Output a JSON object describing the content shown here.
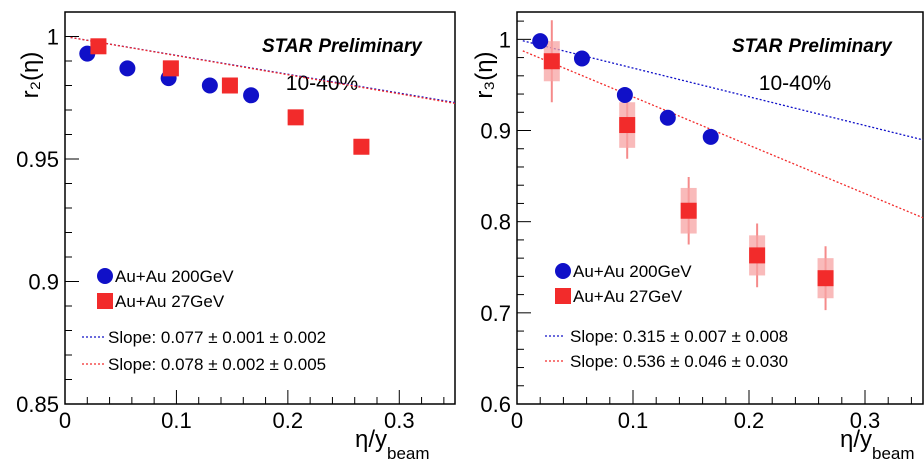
{
  "chart_data": [
    {
      "type": "scatter",
      "panel": "left",
      "header": "STAR",
      "header_suffix": "Preliminary",
      "centrality": "10-40%",
      "ylabel": "r₂(η)",
      "xlabel": "η/y",
      "xlabel_sub": "beam",
      "xlim": [
        0,
        0.35
      ],
      "ylim": [
        0.85,
        1.01
      ],
      "xticks": [
        "0",
        "0.1",
        "0.2",
        "0.3"
      ],
      "yticks": [
        "0.85",
        "0.9",
        "0.95",
        "1"
      ],
      "xtick_values": [
        0,
        0.1,
        0.2,
        0.3
      ],
      "ytick_values": [
        0.85,
        0.9,
        0.95,
        1.0
      ],
      "grid": false,
      "legend_position": "bottom-left",
      "series": [
        {
          "name": "Au+Au 200GeV",
          "marker": "circle",
          "color": "#1010c8",
          "x": [
            0.02,
            0.056,
            0.093,
            0.13,
            0.167
          ],
          "y": [
            0.993,
            0.987,
            0.983,
            0.98,
            0.976
          ]
        },
        {
          "name": "Au+Au 27GeV",
          "marker": "square",
          "color": "#f22b2b",
          "x": [
            0.03,
            0.095,
            0.148,
            0.207,
            0.266
          ],
          "y": [
            0.996,
            0.987,
            0.98,
            0.967,
            0.955
          ],
          "syst": [
            0.0015,
            0.0015,
            0.0015,
            0.0015,
            0.0015
          ]
        }
      ],
      "fits": [
        {
          "label": "Slope: 0.077",
          "stat": "± 0.001",
          "sys": "± 0.002",
          "color": "#1010c8",
          "slope": 0.077,
          "intercept": 1.0
        },
        {
          "label": "Slope: 0.078",
          "stat": "± 0.002",
          "sys": "± 0.005",
          "color": "#f22b2b",
          "slope": 0.078,
          "intercept": 1.0
        }
      ]
    },
    {
      "type": "scatter",
      "panel": "right",
      "header": "STAR",
      "header_suffix": "Preliminary",
      "centrality": "10-40%",
      "ylabel": "r₃(η)",
      "xlabel": "η/y",
      "xlabel_sub": "beam",
      "xlim": [
        0,
        0.35
      ],
      "ylim": [
        0.6,
        1.03
      ],
      "xticks": [
        "0",
        "0.1",
        "0.2",
        "0.3"
      ],
      "yticks": [
        "0.6",
        "0.7",
        "0.8",
        "0.9",
        "1"
      ],
      "xtick_values": [
        0,
        0.1,
        0.2,
        0.3
      ],
      "ytick_values": [
        0.6,
        0.7,
        0.8,
        0.9,
        1.0
      ],
      "grid": false,
      "legend_position": "bottom-left",
      "series": [
        {
          "name": "Au+Au 200GeV",
          "marker": "circle",
          "color": "#1010c8",
          "x": [
            0.02,
            0.056,
            0.093,
            0.13,
            0.167
          ],
          "y": [
            0.998,
            0.979,
            0.939,
            0.914,
            0.893
          ]
        },
        {
          "name": "Au+Au 27GeV",
          "marker": "square",
          "color": "#f22b2b",
          "x": [
            0.03,
            0.095,
            0.148,
            0.207,
            0.266
          ],
          "y": [
            0.976,
            0.906,
            0.812,
            0.763,
            0.738
          ],
          "err_stat": [
            0.045,
            0.037,
            0.037,
            0.035,
            0.035
          ],
          "syst": [
            0.022,
            0.025,
            0.025,
            0.022,
            0.022
          ]
        }
      ],
      "fits": [
        {
          "label": "Slope: 0.315",
          "stat": "± 0.007",
          "sys": "± 0.008",
          "color": "#1010c8",
          "slope": 0.315,
          "intercept": 1.0
        },
        {
          "label": "Slope: 0.536",
          "stat": "± 0.046",
          "sys": "± 0.030",
          "color": "#f22b2b",
          "slope": 0.536,
          "intercept": 0.99
        }
      ]
    }
  ]
}
